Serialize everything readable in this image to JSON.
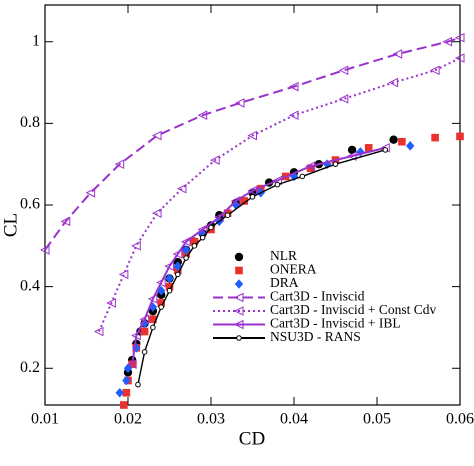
{
  "chart_data": {
    "type": "line",
    "xlabel": "CD",
    "ylabel": "CL",
    "xlim": [
      0.01,
      0.06
    ],
    "ylim": [
      0.11,
      1.09
    ],
    "xticks": [
      0.01,
      0.02,
      0.03,
      0.04,
      0.05,
      0.06
    ],
    "yticks": [
      0.2,
      0.4,
      0.6,
      0.8,
      1
    ],
    "grid": false,
    "legend": "lower right",
    "series": [
      {
        "name": "NLR",
        "color": "#000000",
        "marker": "circle",
        "linestyle": "none",
        "x": [
          0.02,
          0.0205,
          0.021,
          0.0215,
          0.022,
          0.023,
          0.024,
          0.025,
          0.026,
          0.027,
          0.028,
          0.029,
          0.03,
          0.031,
          0.033,
          0.035,
          0.037,
          0.04,
          0.043,
          0.047,
          0.052
        ],
        "values": [
          0.19,
          0.22,
          0.26,
          0.29,
          0.31,
          0.34,
          0.38,
          0.42,
          0.46,
          0.49,
          0.51,
          0.53,
          0.55,
          0.575,
          0.605,
          0.63,
          0.655,
          0.68,
          0.7,
          0.735,
          0.76
        ]
      },
      {
        "name": "ONERA",
        "color": "#e8322b",
        "marker": "square",
        "linestyle": "none",
        "x": [
          0.0195,
          0.0198,
          0.02,
          0.0205,
          0.021,
          0.022,
          0.023,
          0.024,
          0.025,
          0.026,
          0.027,
          0.028,
          0.03,
          0.032,
          0.034,
          0.036,
          0.039,
          0.042,
          0.045,
          0.049,
          0.053,
          0.057,
          0.06
        ],
        "values": [
          0.11,
          0.14,
          0.17,
          0.21,
          0.25,
          0.29,
          0.32,
          0.36,
          0.4,
          0.44,
          0.48,
          0.51,
          0.54,
          0.58,
          0.61,
          0.64,
          0.67,
          0.69,
          0.71,
          0.74,
          0.755,
          0.765,
          0.768
        ]
      },
      {
        "name": "DRA",
        "color": "#1f5fff",
        "marker": "diamond",
        "linestyle": "none",
        "x": [
          0.019,
          0.0198,
          0.02,
          0.021,
          0.022,
          0.023,
          0.024,
          0.025,
          0.026,
          0.027,
          0.029,
          0.031,
          0.033,
          0.036,
          0.04,
          0.044,
          0.048,
          0.054
        ],
        "values": [
          0.14,
          0.17,
          0.2,
          0.25,
          0.31,
          0.35,
          0.39,
          0.42,
          0.45,
          0.49,
          0.53,
          0.56,
          0.6,
          0.63,
          0.67,
          0.7,
          0.73,
          0.745
        ]
      },
      {
        "name": "Cart3D - Inviscid",
        "color": "#9932cc",
        "marker": "triangle-left",
        "linestyle": "dashed",
        "x": [
          0.01,
          0.0125,
          0.0155,
          0.019,
          0.0235,
          0.029,
          0.0335,
          0.04,
          0.046,
          0.0525,
          0.0585,
          0.06
        ],
        "values": [
          0.49,
          0.56,
          0.63,
          0.7,
          0.77,
          0.82,
          0.85,
          0.89,
          0.93,
          0.97,
          1.0,
          1.01
        ]
      },
      {
        "name": "Cart3D - Inviscid + Const Cdv",
        "color": "#9932cc",
        "marker": "triangle-left",
        "linestyle": "dotted",
        "x": [
          0.0165,
          0.018,
          0.0195,
          0.021,
          0.0235,
          0.0265,
          0.0305,
          0.035,
          0.04,
          0.046,
          0.052,
          0.057,
          0.06
        ],
        "values": [
          0.29,
          0.36,
          0.43,
          0.5,
          0.58,
          0.64,
          0.71,
          0.77,
          0.82,
          0.86,
          0.9,
          0.93,
          0.96
        ]
      },
      {
        "name": "Cart3D - Inviscid + IBL",
        "color": "#9932cc",
        "marker": "triangle-left",
        "linestyle": "solid",
        "x": [
          0.0205,
          0.021,
          0.022,
          0.023,
          0.024,
          0.025,
          0.026,
          0.027,
          0.029,
          0.031,
          0.033,
          0.035,
          0.038,
          0.042,
          0.047,
          0.051
        ],
        "values": [
          0.21,
          0.28,
          0.32,
          0.37,
          0.41,
          0.45,
          0.48,
          0.51,
          0.54,
          0.57,
          0.61,
          0.635,
          0.66,
          0.695,
          0.72,
          0.74
        ]
      },
      {
        "name": "NSU3D - RANS",
        "color": "#000000",
        "marker": "open-circle",
        "linestyle": "solid",
        "x": [
          0.0212,
          0.022,
          0.023,
          0.024,
          0.025,
          0.026,
          0.027,
          0.028,
          0.029,
          0.03,
          0.032,
          0.035,
          0.038,
          0.041,
          0.045,
          0.051
        ],
        "values": [
          0.16,
          0.24,
          0.3,
          0.35,
          0.39,
          0.43,
          0.47,
          0.5,
          0.52,
          0.545,
          0.575,
          0.62,
          0.65,
          0.67,
          0.7,
          0.735
        ]
      }
    ]
  }
}
